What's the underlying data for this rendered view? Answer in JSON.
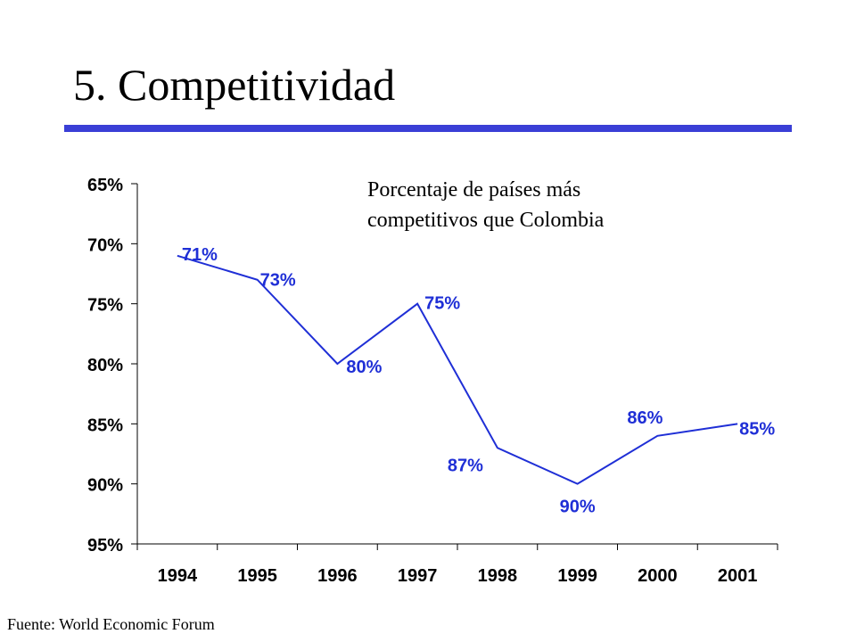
{
  "slide": {
    "title": "5. Competitividad",
    "subtitle_line1": "Porcentaje de países más",
    "subtitle_line2": "competitivos que Colombia",
    "source": "Fuente: World Economic Forum"
  },
  "colors": {
    "rule": "#3a3fd6",
    "series": "#1f2fd6",
    "axis": "#000000"
  },
  "chart_data": {
    "type": "line",
    "title": "Porcentaje de países más competitivos que Colombia",
    "categories": [
      "1994",
      "1995",
      "1996",
      "1997",
      "1998",
      "1999",
      "2000",
      "2001"
    ],
    "series": [
      {
        "values": [
          71,
          73,
          80,
          75,
          87,
          90,
          86,
          85
        ],
        "labels": [
          "71%",
          "73%",
          "80%",
          "75%",
          "87%",
          "90%",
          "86%",
          "85%"
        ]
      }
    ],
    "y_axis": {
      "range": [
        65,
        95
      ],
      "inverted": true,
      "ticks": [
        65,
        70,
        75,
        80,
        85,
        90,
        95
      ],
      "tick_labels": [
        "65%",
        "70%",
        "75%",
        "80%",
        "85%",
        "90%",
        "95%"
      ]
    },
    "grid": false,
    "legend": "none"
  }
}
